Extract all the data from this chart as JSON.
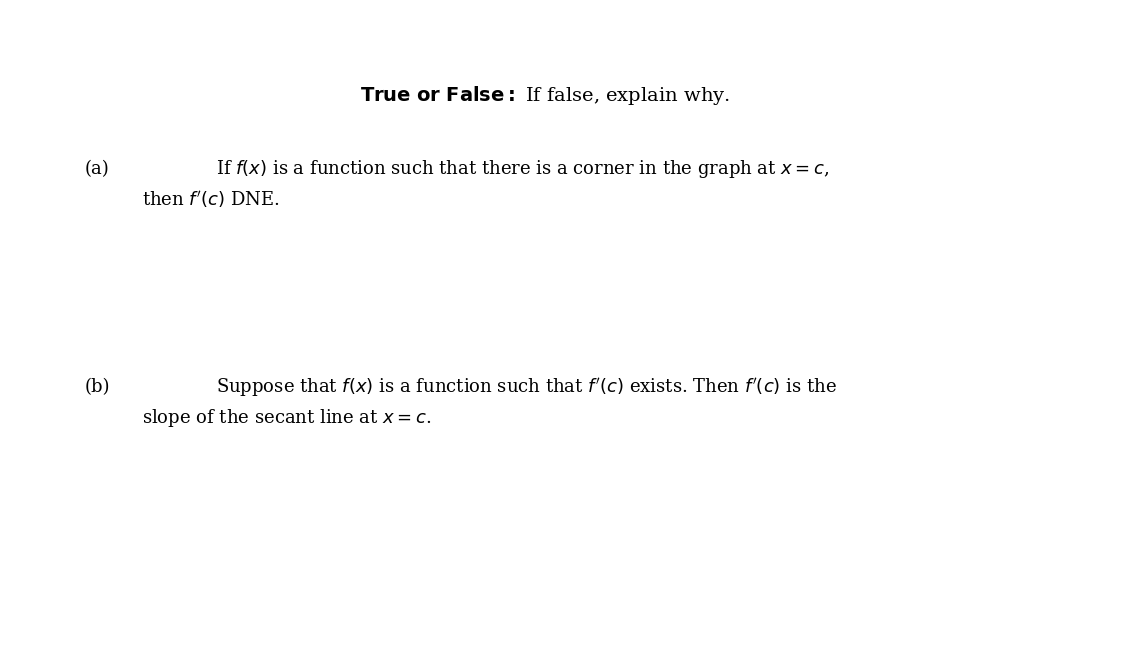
{
  "background_color": "#ffffff",
  "title_line": "\\textbf{True or False:} If false, explain why.",
  "part_a_label": "(a)",
  "part_a_line1": "If $f(x)$ is a function such that there is a corner in the graph at $x = c$,",
  "part_a_line2": "then $f'(c)$ DNE.",
  "part_b_label": "(b)",
  "part_b_line1": "Suppose that $f(x)$ is a function such that $f'(c)$ exists. Then $f'(c)$ is the",
  "part_b_line2": "slope of the secant line at $x = c$.",
  "fig_width": 11.35,
  "fig_height": 6.62,
  "dpi": 100
}
